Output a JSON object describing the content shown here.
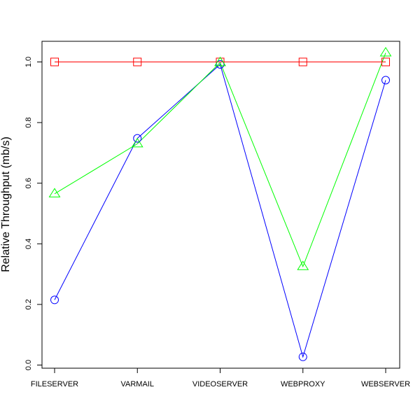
{
  "chart_data": {
    "type": "line",
    "title": "",
    "xlabel": "",
    "ylabel": "Relative Throughput (mb/s)",
    "categories": [
      "FILESERVER",
      "VARMAIL",
      "VIDEOSERVER",
      "WEBPROXY",
      "WEBSERVER"
    ],
    "ylim": [
      0,
      1.06
    ],
    "yticks": [
      "0.0",
      "0.2",
      "0.4",
      "0.6",
      "0.8",
      "1.0"
    ],
    "grid": false,
    "legend": "none",
    "series": [
      {
        "marker": "square",
        "color": "#ff0000",
        "values": [
          1.0,
          1.0,
          1.0,
          1.0,
          1.0
        ]
      },
      {
        "marker": "circle",
        "color": "#0000ff",
        "values": [
          0.215,
          0.748,
          0.992,
          0.027,
          0.94
        ]
      },
      {
        "marker": "triangle",
        "color": "#00ff00",
        "values": [
          0.565,
          0.73,
          0.998,
          0.325,
          1.03
        ]
      }
    ]
  }
}
